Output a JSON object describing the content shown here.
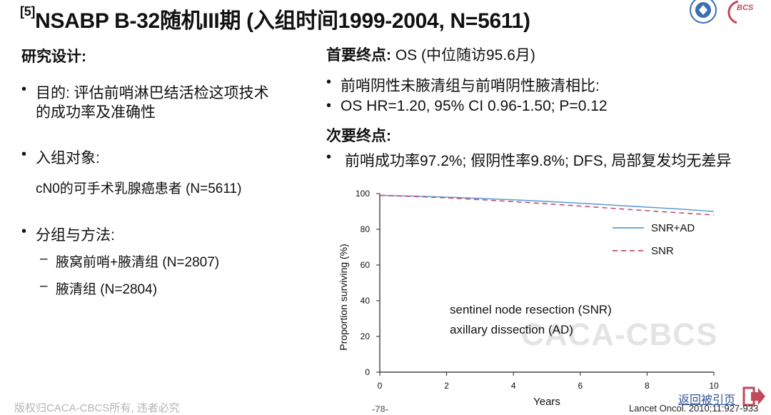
{
  "title": {
    "sup": "[5]",
    "text": "NSABP B-32随机III期 (入组时间1999-2004, N=5611)"
  },
  "left": {
    "design_heading": "研究设计:",
    "objective_line1": "目的: 评估前哨淋巴结活检这项技术",
    "objective_line2": "的成功率及准确性",
    "population_label": "入组对象:",
    "population_text": "cN0的可手术乳腺癌患者 (N=5611)",
    "grouping_label": "分组与方法:",
    "groups": [
      "腋窝前哨+腋清组 (N=2807)",
      "腋清组 (N=2804)"
    ]
  },
  "right": {
    "primary_label": "首要终点:",
    "primary_text": " OS (中位随访95.6月)",
    "primary_items": [
      "前哨阴性未腋清组与前哨阴性腋清相比:",
      "OS HR=1.20, 95% CI 0.96-1.50; P=0.12"
    ],
    "secondary_label": "次要终点:",
    "secondary_item": "前哨成功率97.2%; 假阴性率9.8%; DFS, 局部复发均无差异"
  },
  "chart_data": {
    "type": "line",
    "xlabel": "Years",
    "ylabel": "Proportion surviving (%)",
    "xlim": [
      0,
      10
    ],
    "ylim": [
      0,
      100
    ],
    "xticks": [
      0,
      2,
      4,
      6,
      8,
      10
    ],
    "yticks": [
      0,
      20,
      40,
      60,
      80,
      100
    ],
    "legend": {
      "position": "top-right"
    },
    "series": [
      {
        "name": "SNR+AD",
        "color": "#5b9bd5",
        "dash": "solid",
        "x": [
          0,
          1,
          2,
          3,
          4,
          5,
          6,
          7,
          8,
          9,
          10
        ],
        "y": [
          99,
          98.6,
          98.0,
          97.3,
          96.5,
          95.6,
          94.6,
          93.5,
          92.4,
          91.3,
          90.0
        ]
      },
      {
        "name": "SNR",
        "color": "#c0506e",
        "dash": "dashed",
        "x": [
          0,
          1,
          2,
          3,
          4,
          5,
          6,
          7,
          8,
          9,
          10
        ],
        "y": [
          99,
          98.4,
          97.6,
          96.6,
          95.5,
          94.3,
          93.0,
          91.7,
          90.4,
          89.2,
          88.0
        ]
      }
    ],
    "annotations": [
      "sentinel node resection (SNR)",
      "axillary dissection (AD)"
    ]
  },
  "watermark": "CACA-CBCS",
  "footer": {
    "copyright": "版权归CACA-CBCS所有, 违者必究",
    "page": "-78-",
    "citation": "Lancet Oncol. 2010;11:927-933",
    "back_link": "返回被引页"
  },
  "logos": {
    "society": "society-logo",
    "bcs": "BCS"
  }
}
